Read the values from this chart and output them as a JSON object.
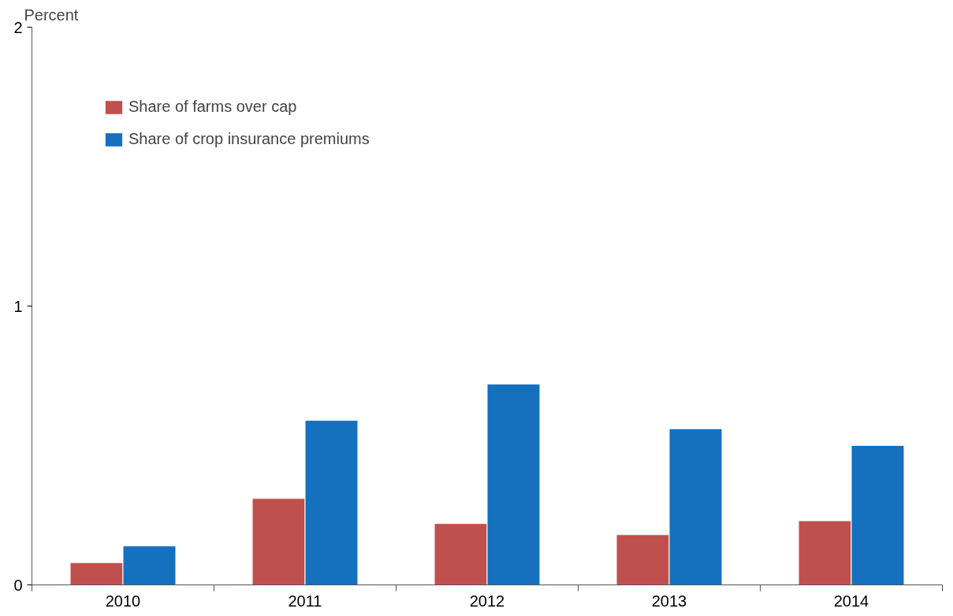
{
  "chart_data": {
    "type": "bar",
    "ylabel": "Percent",
    "categories": [
      "2010",
      "2011",
      "2012",
      "2013",
      "2014"
    ],
    "series": [
      {
        "name": "Share of farms over cap",
        "color": "#c0504d",
        "values": [
          0.08,
          0.31,
          0.22,
          0.18,
          0.23
        ]
      },
      {
        "name": "Share of crop insurance premiums",
        "color": "#1570be",
        "values": [
          0.14,
          0.59,
          0.72,
          0.56,
          0.5
        ]
      }
    ],
    "ylim": [
      0,
      2
    ],
    "yticks": [
      0,
      1,
      2
    ],
    "grid": false,
    "legend": "top left"
  }
}
